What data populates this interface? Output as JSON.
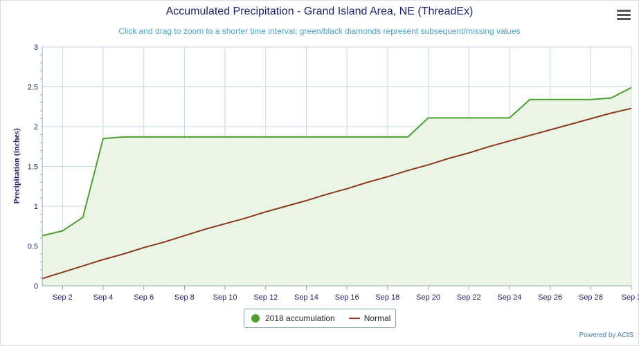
{
  "chart_data": {
    "type": "line",
    "title": "Accumulated Precipitation - Grand Island Area, NE (ThreadEx)",
    "subtitle": "Click and drag to zoom to a shorter time interval; green/black diamonds represent subsequent/missing values",
    "ylabel": "Precipitation (inches)",
    "xlabel": "",
    "ylim": [
      0,
      3
    ],
    "xlim": [
      1,
      30
    ],
    "grid": true,
    "legend_position": "bottom-center",
    "y_ticks": [
      "0",
      "0.5",
      "1",
      "1.5",
      "2",
      "2.5",
      "3"
    ],
    "x_ticks": [
      {
        "day": 2,
        "label": "Sep 2"
      },
      {
        "day": 4,
        "label": "Sep 4"
      },
      {
        "day": 6,
        "label": "Sep 6"
      },
      {
        "day": 8,
        "label": "Sep 8"
      },
      {
        "day": 10,
        "label": "Sep 10"
      },
      {
        "day": 12,
        "label": "Sep 12"
      },
      {
        "day": 14,
        "label": "Sep 14"
      },
      {
        "day": 16,
        "label": "Sep 16"
      },
      {
        "day": 18,
        "label": "Sep 18"
      },
      {
        "day": 20,
        "label": "Sep 20"
      },
      {
        "day": 22,
        "label": "Sep 22"
      },
      {
        "day": 24,
        "label": "Sep 24"
      },
      {
        "day": 26,
        "label": "Sep 26"
      },
      {
        "day": 28,
        "label": "Sep 28"
      },
      {
        "day": 30,
        "label": "Sep 3"
      }
    ],
    "x": [
      1,
      2,
      3,
      4,
      5,
      6,
      7,
      8,
      9,
      10,
      11,
      12,
      13,
      14,
      15,
      16,
      17,
      18,
      19,
      20,
      21,
      22,
      23,
      24,
      25,
      26,
      27,
      28,
      29,
      30
    ],
    "series": [
      {
        "name": "2018 accumulation",
        "color": "#4ba02f",
        "fill": "#ebf5e5",
        "values": [
          0.63,
          0.69,
          0.86,
          1.85,
          1.87,
          1.87,
          1.87,
          1.87,
          1.87,
          1.87,
          1.87,
          1.87,
          1.87,
          1.87,
          1.87,
          1.87,
          1.87,
          1.87,
          1.87,
          2.11,
          2.11,
          2.11,
          2.11,
          2.11,
          2.34,
          2.34,
          2.34,
          2.34,
          2.36,
          2.49
        ]
      },
      {
        "name": "Normal",
        "color": "#8b3a1e",
        "values": [
          0.09,
          0.17,
          0.25,
          0.33,
          0.4,
          0.48,
          0.55,
          0.63,
          0.71,
          0.78,
          0.85,
          0.93,
          1.0,
          1.07,
          1.15,
          1.22,
          1.3,
          1.37,
          1.45,
          1.52,
          1.6,
          1.67,
          1.75,
          1.82,
          1.89,
          1.96,
          2.03,
          2.1,
          2.17,
          2.23
        ]
      }
    ]
  },
  "menu_icon": "hamburger-menu-icon",
  "credit": "Powered by ACIS"
}
